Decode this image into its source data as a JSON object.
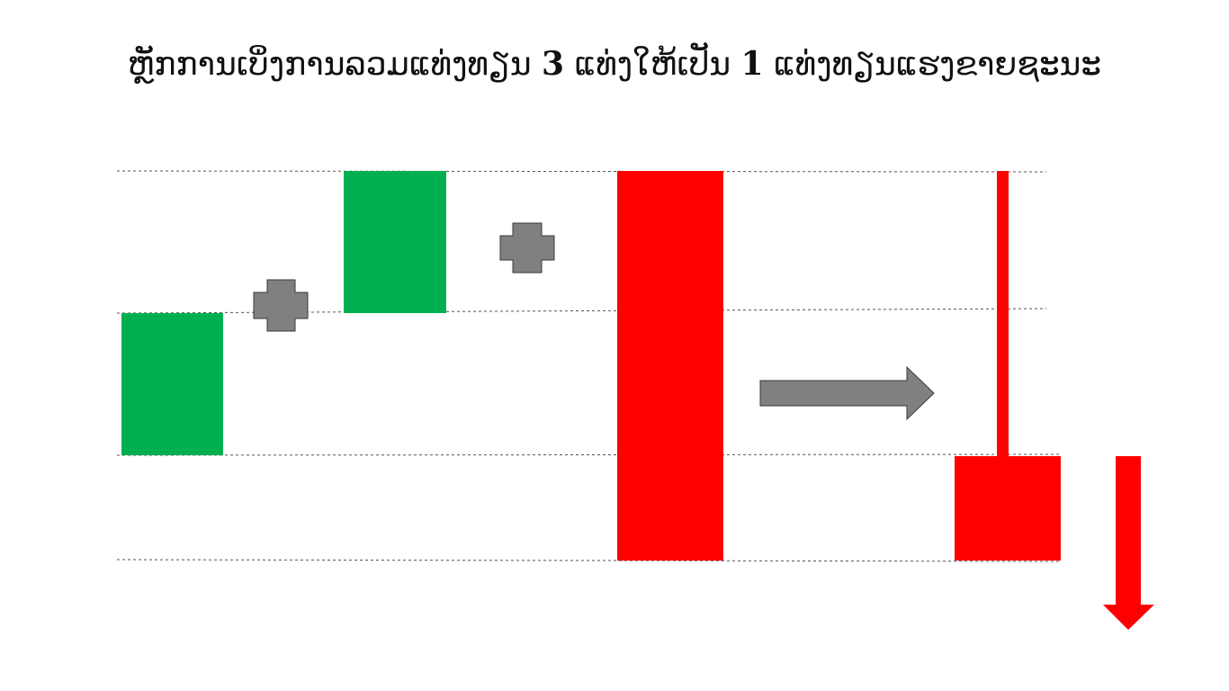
{
  "title": {
    "part1": "ຫຼັກການເບິ່ງການລວມແທ່ງທຽນ ",
    "num1": "3",
    "part2": " ແທ່ງໃຫ້ເປັນ ",
    "num2": "1",
    "part3": " ແທ່ງທຽນແຮງຂາຍຊະນະ"
  },
  "colors": {
    "bullish": "#00b050",
    "bearish": "#ff0000",
    "operator": "#808080",
    "guide_line": "#555555"
  },
  "icons": {
    "plus": "plus-icon",
    "arrow_right": "arrow-right-icon",
    "arrow_down": "arrow-down-icon"
  }
}
